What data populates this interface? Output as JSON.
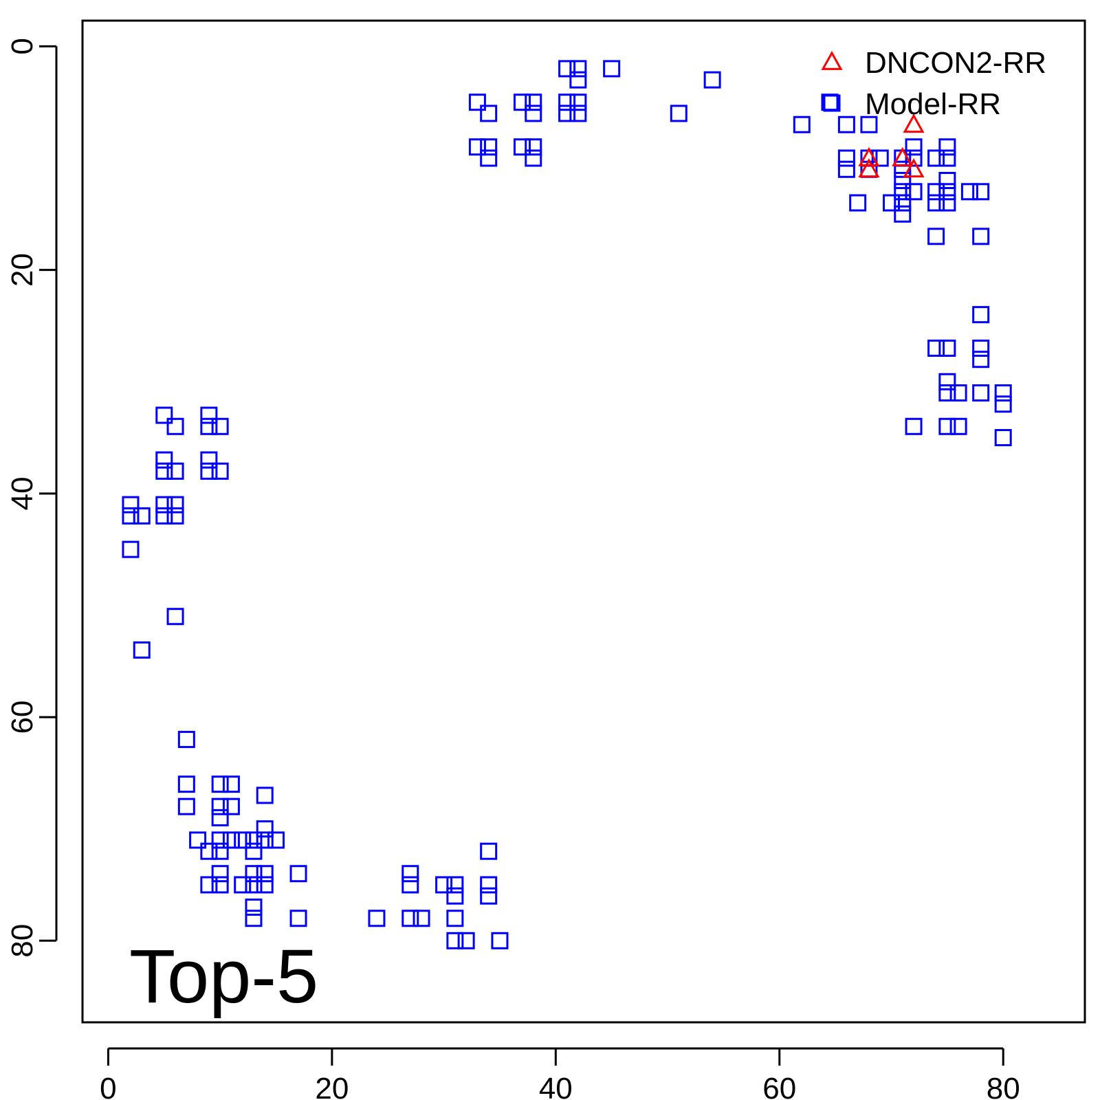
{
  "chart_data": {
    "type": "scatter",
    "title": "",
    "xlabel": "",
    "ylabel": "",
    "annotation": "Top-5",
    "xlim": [
      -2.3,
      87.3
    ],
    "ylim": [
      -2.3,
      87.3
    ],
    "y_inverted": true,
    "x_ticks": [
      0,
      20,
      40,
      60,
      80
    ],
    "y_ticks": [
      0,
      20,
      40,
      60,
      80
    ],
    "x_tick_labels": [
      "0",
      "20",
      "40",
      "60",
      "80"
    ],
    "y_tick_labels": [
      "0",
      "20",
      "40",
      "60",
      "80"
    ],
    "grid": false,
    "legend_position": "top-right",
    "series": [
      {
        "name": "DNCON2-RR",
        "marker": "triangle",
        "color": "#ff0000",
        "points": [
          [
            72,
            7
          ],
          [
            68,
            10
          ],
          [
            68,
            11
          ],
          [
            71,
            10
          ],
          [
            72,
            11
          ]
        ]
      },
      {
        "name": "Model-RR",
        "marker": "square",
        "color": "#0000ff",
        "points": [
          [
            41,
            2
          ],
          [
            42,
            2
          ],
          [
            45,
            2
          ],
          [
            42,
            3
          ],
          [
            54,
            3
          ],
          [
            33,
            5
          ],
          [
            37,
            5
          ],
          [
            38,
            5
          ],
          [
            41,
            5
          ],
          [
            42,
            5
          ],
          [
            64.5,
            5
          ],
          [
            34,
            6
          ],
          [
            38,
            6
          ],
          [
            41,
            6
          ],
          [
            42,
            6
          ],
          [
            51,
            6
          ],
          [
            62,
            7
          ],
          [
            66,
            7
          ],
          [
            68,
            7
          ],
          [
            33,
            9
          ],
          [
            34,
            9
          ],
          [
            37,
            9
          ],
          [
            38,
            9
          ],
          [
            72,
            9
          ],
          [
            75,
            9
          ],
          [
            34,
            10
          ],
          [
            38,
            10
          ],
          [
            66,
            10
          ],
          [
            68,
            10
          ],
          [
            69,
            10
          ],
          [
            71,
            10
          ],
          [
            72,
            10
          ],
          [
            74,
            10
          ],
          [
            75,
            10
          ],
          [
            66,
            11
          ],
          [
            68,
            11
          ],
          [
            71,
            11
          ],
          [
            71,
            12
          ],
          [
            75,
            12
          ],
          [
            71,
            13
          ],
          [
            72,
            13
          ],
          [
            74,
            13
          ],
          [
            75,
            13
          ],
          [
            77,
            13
          ],
          [
            78,
            13
          ],
          [
            67,
            14
          ],
          [
            70,
            14
          ],
          [
            71,
            14
          ],
          [
            74,
            14
          ],
          [
            75,
            14
          ],
          [
            71,
            15
          ],
          [
            74,
            17
          ],
          [
            78,
            17
          ],
          [
            78,
            24
          ],
          [
            74,
            27
          ],
          [
            75,
            27
          ],
          [
            78,
            27
          ],
          [
            78,
            28
          ],
          [
            75,
            30
          ],
          [
            75,
            31
          ],
          [
            76,
            31
          ],
          [
            78,
            31
          ],
          [
            80,
            31
          ],
          [
            80,
            32
          ],
          [
            5,
            33
          ],
          [
            9,
            33
          ],
          [
            6,
            34
          ],
          [
            9,
            34
          ],
          [
            10,
            34
          ],
          [
            72,
            34
          ],
          [
            75,
            34
          ],
          [
            76,
            34
          ],
          [
            80,
            35
          ],
          [
            5,
            37
          ],
          [
            9,
            37
          ],
          [
            5,
            38
          ],
          [
            6,
            38
          ],
          [
            9,
            38
          ],
          [
            10,
            38
          ],
          [
            2,
            41
          ],
          [
            5,
            41
          ],
          [
            6,
            41
          ],
          [
            2,
            42
          ],
          [
            3,
            42
          ],
          [
            5,
            42
          ],
          [
            6,
            42
          ],
          [
            2,
            45
          ],
          [
            6,
            51
          ],
          [
            3,
            54
          ],
          [
            7,
            62
          ],
          [
            7,
            66
          ],
          [
            10,
            66
          ],
          [
            11,
            66
          ],
          [
            7,
            68
          ],
          [
            10,
            68
          ],
          [
            11,
            68
          ],
          [
            14,
            67
          ],
          [
            10,
            69
          ],
          [
            14,
            70
          ],
          [
            8,
            71
          ],
          [
            10,
            71
          ],
          [
            11,
            71
          ],
          [
            12,
            71
          ],
          [
            13,
            71
          ],
          [
            14,
            71
          ],
          [
            15,
            71
          ],
          [
            9,
            72
          ],
          [
            10,
            72
          ],
          [
            13,
            72
          ],
          [
            34,
            72
          ],
          [
            10,
            74
          ],
          [
            13,
            74
          ],
          [
            14,
            74
          ],
          [
            17,
            74
          ],
          [
            27,
            74
          ],
          [
            9,
            75
          ],
          [
            10,
            75
          ],
          [
            12,
            75
          ],
          [
            13,
            75
          ],
          [
            14,
            75
          ],
          [
            27,
            75
          ],
          [
            30,
            75
          ],
          [
            31,
            75
          ],
          [
            34,
            75
          ],
          [
            31,
            76
          ],
          [
            34,
            76
          ],
          [
            13,
            77
          ],
          [
            13,
            78
          ],
          [
            17,
            78
          ],
          [
            24,
            78
          ],
          [
            27,
            78
          ],
          [
            28,
            78
          ],
          [
            31,
            78
          ],
          [
            31,
            80
          ],
          [
            32,
            80
          ],
          [
            35,
            80
          ]
        ]
      }
    ]
  }
}
